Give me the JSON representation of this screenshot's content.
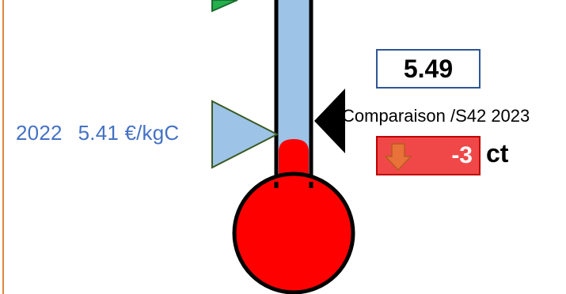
{
  "reference": {
    "year": "2022",
    "price": "5.41 €/kgC"
  },
  "current": {
    "value": "5.49"
  },
  "comparison": {
    "label": "Comparaison /S42 2023",
    "delta": "-3",
    "unit": "ct",
    "direction": "down"
  },
  "colors": {
    "tube_fill": "#9dc3e6",
    "mercury": "#ff0000",
    "reference_marker": "#9dc3e6",
    "top_marker": "#22b14c",
    "delta_bg": "#f04848",
    "value_border": "#2f5597",
    "label_text": "#4472c4",
    "frame_border": "#e0883c"
  }
}
